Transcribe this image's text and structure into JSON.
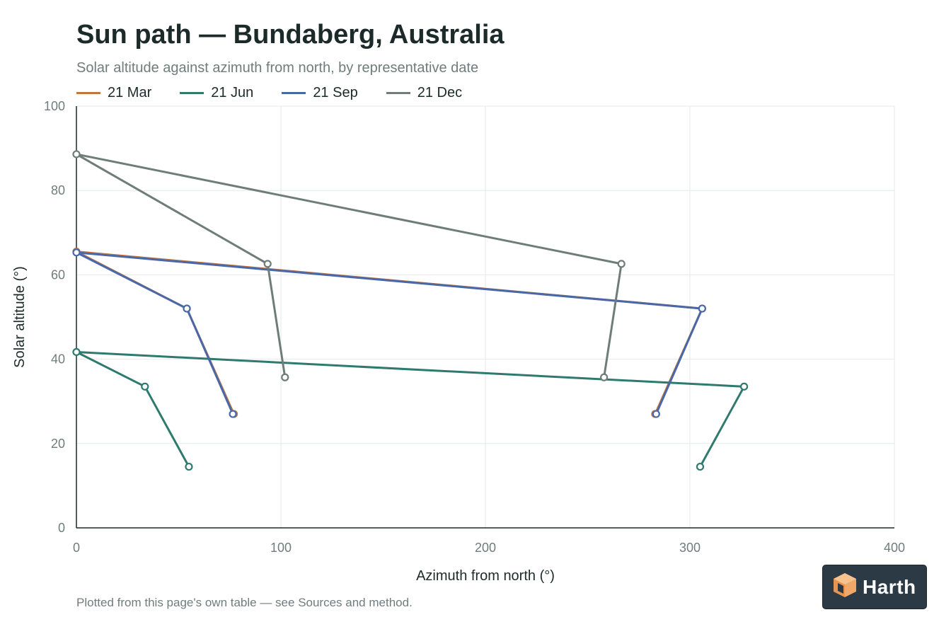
{
  "header": {
    "title": "Sun path — Bundaberg, Australia",
    "subtitle": "Solar altitude against azimuth from north, by representative date"
  },
  "footnote": "Plotted from this page's own table — see Sources and method.",
  "logo": {
    "text": "Harth",
    "icon": "cube-logo-icon",
    "accent": "#f0a868",
    "background": "#2b3a45"
  },
  "chart_data": {
    "type": "line",
    "title": "Sun path — Bundaberg, Australia",
    "subtitle": "Solar altitude against azimuth from north, by representative date",
    "xlabel": "Azimuth from north (°)",
    "ylabel": "Solar altitude (°)",
    "xlim": [
      0,
      400
    ],
    "ylim": [
      0,
      100
    ],
    "xticks": [
      0,
      100,
      200,
      300,
      400
    ],
    "yticks": [
      0,
      20,
      40,
      60,
      80,
      100
    ],
    "grid": true,
    "legend_position": "top-left",
    "series": [
      {
        "name": "21 Mar",
        "color": "#c07840",
        "points": [
          [
            77,
            27
          ],
          [
            54,
            52
          ],
          [
            0,
            65.5
          ],
          [
            306,
            52
          ],
          [
            283,
            27
          ]
        ]
      },
      {
        "name": "21 Jun",
        "color": "#2e7a6e",
        "points": [
          [
            55,
            14.5
          ],
          [
            33.5,
            33.5
          ],
          [
            0,
            41.7
          ],
          [
            326.5,
            33.5
          ],
          [
            305,
            14.5
          ]
        ]
      },
      {
        "name": "21 Sep",
        "color": "#4a68a8",
        "points": [
          [
            76.5,
            27
          ],
          [
            54,
            52
          ],
          [
            0,
            65.3
          ],
          [
            306,
            52
          ],
          [
            283.5,
            27
          ]
        ]
      },
      {
        "name": "21 Dec",
        "color": "#6f7d78",
        "points": [
          [
            102,
            35.7
          ],
          [
            93.5,
            62.6
          ],
          [
            0,
            88.6
          ],
          [
            266.5,
            62.6
          ],
          [
            258,
            35.7
          ]
        ]
      }
    ]
  }
}
